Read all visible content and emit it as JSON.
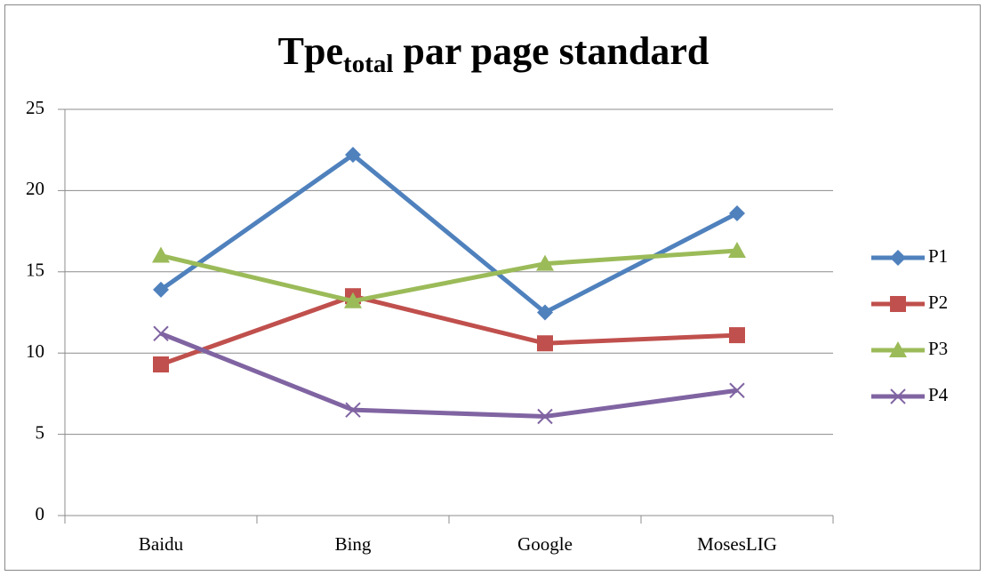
{
  "chart_data": {
    "type": "line",
    "title": {
      "text": "Tpe",
      "subscript": "total",
      "rest": " par page standard"
    },
    "categories": [
      "Baidu",
      "Bing",
      "Google",
      "MosesLIG"
    ],
    "series": [
      {
        "name": "P1",
        "color": "#4f81bd",
        "marker": "diamond",
        "values": [
          13.9,
          22.2,
          12.5,
          18.6
        ]
      },
      {
        "name": "P2",
        "color": "#c0504d",
        "marker": "square",
        "values": [
          9.3,
          13.5,
          10.6,
          11.1
        ]
      },
      {
        "name": "P3",
        "color": "#9bbb59",
        "marker": "triangle",
        "values": [
          16.0,
          13.2,
          15.5,
          16.3
        ]
      },
      {
        "name": "P4",
        "color": "#8064a2",
        "marker": "x",
        "values": [
          11.2,
          6.5,
          6.1,
          7.7
        ]
      }
    ],
    "ylim": [
      0,
      25
    ],
    "yticks": [
      0,
      5,
      10,
      15,
      20,
      25
    ],
    "grid": true,
    "legend": "right"
  }
}
